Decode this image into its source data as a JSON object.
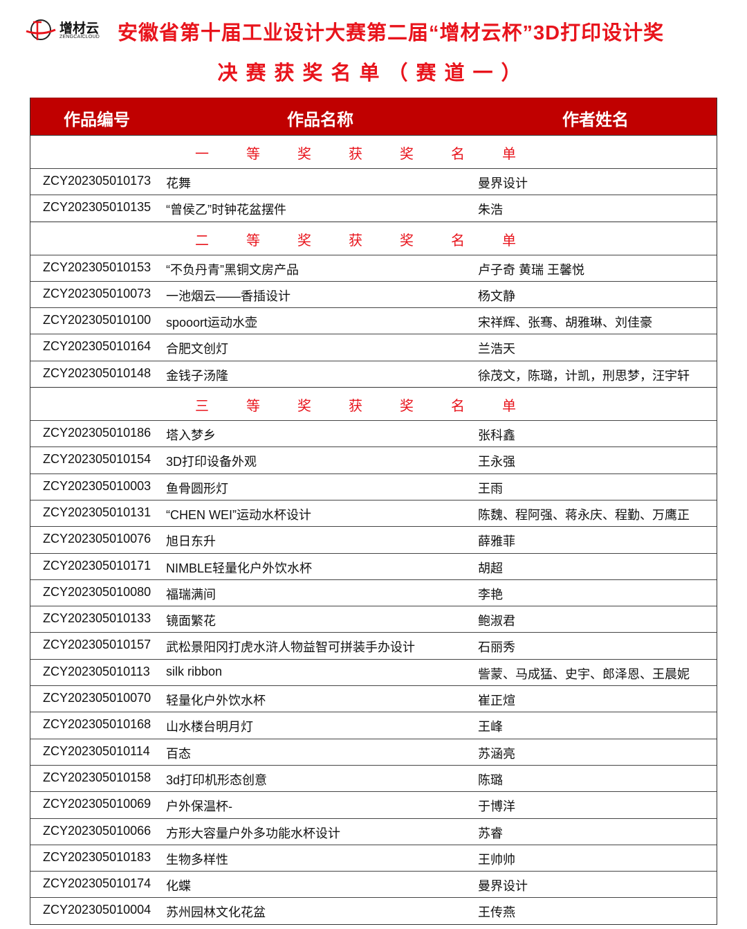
{
  "logo": {
    "name": "增材云",
    "sub": "ZENGCAICLOUD"
  },
  "title_line1": "安徽省第十届工业设计大赛第二届“增材云杯”3D打印设计奖",
  "title_line2": "决赛获奖名单（赛道一）",
  "colors": {
    "accent": "#c00000",
    "title_red": "#e8141c"
  },
  "headers": [
    "作品编号",
    "作品名称",
    "作者姓名"
  ],
  "sections": [
    {
      "label": [
        "一",
        "等",
        "奖",
        "获",
        "奖",
        "名",
        "单"
      ],
      "rows": [
        [
          "ZCY202305010173",
          "花舞",
          "曼界设计"
        ],
        [
          "ZCY202305010135",
          "“曾侯乙”时钟花盆摆件",
          "朱浩"
        ]
      ]
    },
    {
      "label": [
        "二",
        "等",
        "奖",
        "获",
        "奖",
        "名",
        "单"
      ],
      "rows": [
        [
          "ZCY202305010153",
          "“不负丹青”黑铜文房产品",
          "卢子奇 黄瑞 王馨悦"
        ],
        [
          "ZCY202305010073",
          "一池烟云——香插设计",
          "杨文静"
        ],
        [
          "ZCY202305010100",
          "spooort运动水壶",
          "宋祥辉、张骞、胡雅琳、刘佳豪"
        ],
        [
          "ZCY202305010164",
          "合肥文创灯",
          "兰浩天"
        ],
        [
          "ZCY202305010148",
          "金钱子汤隆",
          "徐茂文，陈璐，计凯，刑思梦，汪宇轩"
        ]
      ]
    },
    {
      "label": [
        "三",
        "等",
        "奖",
        "获",
        "奖",
        "名",
        "单"
      ],
      "rows": [
        [
          "ZCY202305010186",
          "塔入梦乡",
          "张科鑫"
        ],
        [
          "ZCY202305010154",
          "3D打印设备外观",
          "王永强"
        ],
        [
          "ZCY202305010003",
          "鱼骨圆形灯",
          "王雨"
        ],
        [
          "ZCY202305010131",
          "“CHEN WEI”运动水杯设计",
          "陈魏、程阿强、蒋永庆、程勤、万鹰正"
        ],
        [
          "ZCY202305010076",
          "旭日东升",
          "薛雅菲"
        ],
        [
          "ZCY202305010171",
          "NIMBLE轻量化户外饮水杯",
          "胡超"
        ],
        [
          "ZCY202305010080",
          "福瑞满间",
          "李艳"
        ],
        [
          "ZCY202305010133",
          "镜面繁花",
          "鲍淑君"
        ],
        [
          "ZCY202305010157",
          "武松景阳冈打虎水浒人物益智可拼装手办设计",
          "石丽秀"
        ],
        [
          "ZCY202305010113",
          "silk ribbon",
          "訾蒙、马成猛、史宇、郎泽恩、王晨妮"
        ],
        [
          "ZCY202305010070",
          "轻量化户外饮水杯",
          "崔正煊"
        ],
        [
          "ZCY202305010168",
          "山水楼台明月灯",
          "王峰"
        ],
        [
          "ZCY202305010114",
          "百态",
          "苏涵亮"
        ],
        [
          "ZCY202305010158",
          "3d打印机形态创意",
          "陈璐"
        ],
        [
          "ZCY202305010069",
          "户外保温杯-",
          "于博洋"
        ],
        [
          "ZCY202305010066",
          "方形大容量户外多功能水杯设计",
          "苏睿"
        ],
        [
          "ZCY202305010183",
          "生物多样性",
          "王帅帅"
        ],
        [
          "ZCY202305010174",
          "化蝶",
          "曼界设计"
        ],
        [
          "ZCY202305010004",
          "苏州园林文化花盆",
          "王传燕"
        ]
      ]
    }
  ]
}
